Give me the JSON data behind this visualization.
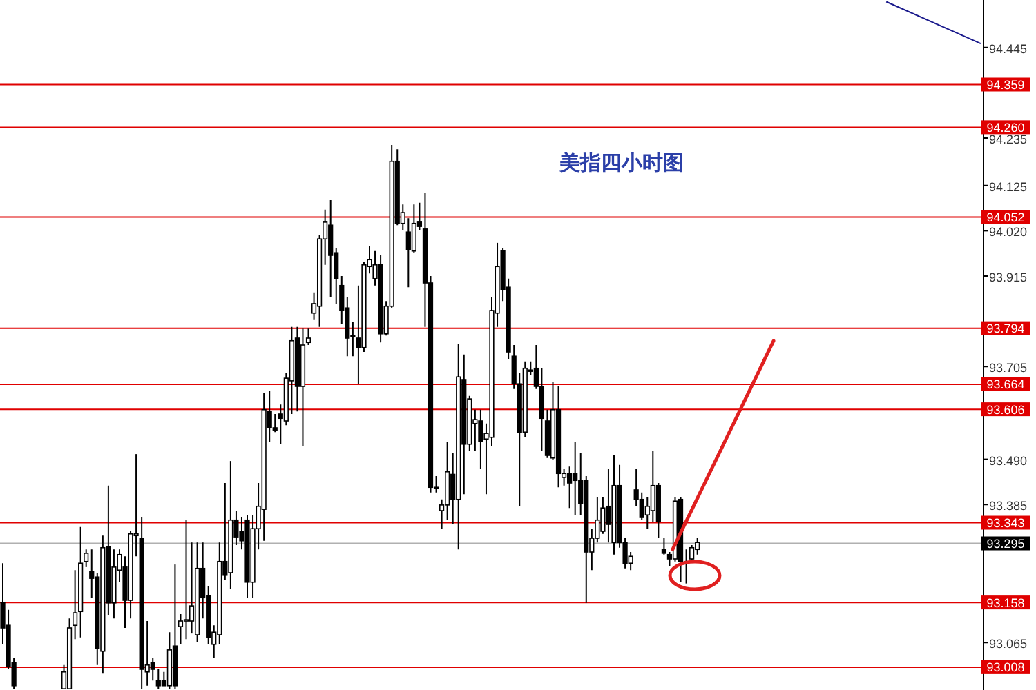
{
  "chart_data": {
    "type": "candlestick",
    "title": "美指四小时图",
    "categories": [
      null,
      null,
      null,
      null,
      null,
      null,
      null,
      null,
      null,
      null,
      null,
      null,
      null,
      null,
      null,
      null,
      null,
      null,
      null,
      null,
      null,
      null,
      null,
      null,
      null,
      null,
      null,
      null,
      null,
      null,
      null,
      null,
      null,
      null,
      null,
      null,
      null,
      null,
      null,
      null,
      null,
      null,
      null,
      null,
      null,
      null,
      null,
      null,
      null,
      null,
      null,
      null,
      null,
      null,
      null,
      null,
      null,
      null,
      null,
      null,
      null,
      null,
      null,
      null,
      null,
      null,
      null,
      null,
      null,
      null,
      null,
      null,
      null,
      null,
      null,
      null,
      null,
      null,
      null,
      null,
      null,
      null,
      null,
      null,
      null,
      null,
      null,
      null,
      null,
      null,
      null,
      null,
      null,
      null,
      null,
      null,
      null,
      null,
      null,
      null,
      null,
      null,
      null,
      null,
      null,
      null,
      null,
      null,
      null,
      null,
      null,
      null,
      null,
      null,
      null,
      null,
      null,
      null,
      null,
      null,
      null,
      null,
      null,
      null,
      null,
      null,
      null,
      null,
      null,
      null,
      null,
      null,
      null,
      null,
      null,
      null,
      null,
      null,
      null,
      null,
      null,
      null,
      null,
      null,
      null,
      null,
      null,
      null,
      null,
      null,
      null,
      null,
      null,
      null,
      null,
      null,
      null,
      null,
      null,
      null,
      null,
      null,
      null,
      null,
      null,
      null,
      null,
      null,
      null,
      null,
      null,
      null,
      null,
      null,
      null,
      null,
      null
    ],
    "ohlc": [
      [
        93.157,
        93.249,
        93.061,
        93.099
      ],
      [
        93.105,
        93.141,
        93.003,
        93.009
      ],
      [
        93.019,
        93.029,
        92.958,
        92.965
      ],
      null,
      null,
      null,
      null,
      null,
      null,
      null,
      null,
      [
        92.958,
        93.013,
        92.958,
        92.997
      ],
      [
        92.958,
        93.121,
        92.958,
        93.099
      ],
      [
        93.105,
        93.233,
        93.073,
        93.134
      ],
      [
        93.137,
        93.333,
        93.077,
        93.249
      ],
      [
        93.253,
        93.281,
        93.24,
        93.272
      ],
      [
        93.23,
        93.281,
        93.169,
        93.214
      ],
      [
        93.217,
        93.227,
        93.013,
        93.051
      ],
      [
        93.045,
        93.313,
        92.993,
        93.285
      ],
      [
        93.288,
        93.429,
        93.128,
        93.157
      ],
      [
        93.157,
        93.281,
        93.121,
        93.24
      ],
      [
        93.233,
        93.281,
        93.205,
        93.269
      ],
      [
        93.24,
        93.265,
        93.099,
        93.163
      ],
      [
        93.163,
        93.323,
        93.121,
        93.317
      ],
      [
        93.313,
        93.502,
        93.265,
        93.317
      ],
      [
        93.307,
        93.355,
        92.958,
        93.003
      ],
      [
        92.997,
        93.115,
        92.965,
        93.013
      ],
      [
        93.019,
        93.029,
        92.977,
        93.003
      ],
      [
        92.977,
        93.003,
        92.958,
        92.965
      ],
      [
        92.977,
        92.997,
        92.965,
        92.965
      ],
      [
        92.965,
        93.089,
        92.958,
        93.048
      ],
      [
        93.057,
        93.246,
        92.958,
        92.965
      ],
      [
        93.102,
        93.131,
        93.061,
        93.115
      ],
      [
        93.115,
        93.349,
        93.073,
        93.118
      ],
      [
        93.115,
        93.297,
        93.086,
        93.15
      ],
      [
        93.083,
        93.297,
        93.067,
        93.237
      ],
      [
        93.237,
        93.297,
        93.121,
        93.169
      ],
      [
        93.173,
        93.195,
        93.061,
        93.077
      ],
      [
        93.061,
        93.105,
        93.029,
        93.089
      ],
      [
        93.083,
        93.297,
        93.061,
        93.253
      ],
      [
        93.253,
        93.435,
        93.211,
        93.221
      ],
      [
        93.227,
        93.486,
        93.189,
        93.349
      ],
      [
        93.349,
        93.371,
        93.291,
        93.31
      ],
      [
        93.323,
        93.355,
        93.281,
        93.301
      ],
      [
        93.349,
        93.361,
        93.169,
        93.205
      ],
      [
        93.205,
        93.361,
        93.169,
        93.329
      ],
      [
        93.329,
        93.435,
        93.281,
        93.381
      ],
      [
        93.374,
        93.643,
        93.301,
        93.605
      ],
      [
        93.601,
        93.649,
        93.531,
        93.563
      ],
      [
        93.563,
        93.595,
        93.553,
        93.557
      ],
      [
        93.595,
        93.617,
        93.525,
        93.585
      ],
      [
        93.579,
        93.691,
        93.569,
        93.678
      ],
      [
        93.672,
        93.797,
        93.595,
        93.765
      ],
      [
        93.771,
        93.797,
        93.601,
        93.659
      ],
      [
        93.659,
        93.793,
        93.521,
        93.755
      ],
      [
        93.761,
        93.793,
        93.755,
        93.771
      ],
      [
        93.829,
        93.877,
        93.813,
        93.851
      ],
      [
        93.845,
        94.011,
        93.797,
        94.001
      ],
      [
        94.001,
        94.069,
        93.941,
        94.04
      ],
      [
        94.033,
        94.091,
        93.867,
        93.963
      ],
      [
        93.969,
        93.979,
        93.851,
        93.909
      ],
      [
        93.893,
        93.915,
        93.803,
        93.835
      ],
      [
        93.841,
        93.867,
        93.729,
        93.771
      ],
      [
        93.777,
        93.809,
        93.729,
        93.774
      ],
      [
        93.771,
        93.893,
        93.665,
        93.749
      ],
      [
        93.749,
        93.947,
        93.739,
        93.941
      ],
      [
        93.937,
        93.985,
        93.921,
        93.953
      ],
      [
        93.909,
        93.973,
        93.893,
        93.941
      ],
      [
        93.941,
        93.963,
        93.761,
        93.781
      ],
      [
        93.781,
        93.857,
        93.777,
        93.845
      ],
      [
        93.845,
        94.219,
        93.841,
        94.181
      ],
      [
        94.181,
        94.209,
        94.033,
        94.037
      ],
      [
        94.037,
        94.081,
        94.021,
        94.062
      ],
      [
        94.017,
        94.049,
        93.889,
        93.976
      ],
      [
        93.973,
        94.081,
        93.969,
        94.037
      ],
      [
        94.04,
        94.085,
        94.021,
        94.03
      ],
      [
        94.024,
        94.107,
        93.797,
        93.899
      ],
      [
        93.899,
        93.915,
        93.413,
        93.425
      ],
      [
        93.425,
        93.451,
        93.413,
        93.422
      ],
      [
        93.371,
        93.397,
        93.329,
        93.384
      ],
      [
        93.384,
        93.531,
        93.349,
        93.461
      ],
      [
        93.455,
        93.505,
        93.339,
        93.397
      ],
      [
        93.397,
        93.758,
        93.281,
        93.681
      ],
      [
        93.675,
        93.733,
        93.409,
        93.525
      ],
      [
        93.525,
        93.637,
        93.509,
        93.63
      ],
      [
        93.573,
        93.605,
        93.509,
        93.582
      ],
      [
        93.579,
        93.605,
        93.467,
        93.531
      ],
      [
        93.537,
        93.573,
        93.409,
        93.55
      ],
      [
        93.541,
        93.867,
        93.521,
        93.835
      ],
      [
        93.829,
        93.992,
        93.797,
        93.937
      ],
      [
        93.973,
        93.979,
        93.857,
        93.883
      ],
      [
        93.889,
        93.909,
        93.723,
        93.739
      ],
      [
        93.729,
        93.755,
        93.653,
        93.665
      ],
      [
        93.665,
        93.691,
        93.381,
        93.553
      ],
      [
        93.553,
        93.717,
        93.541,
        93.701
      ],
      [
        93.697,
        93.717,
        93.685,
        93.694
      ],
      [
        93.701,
        93.755,
        93.653,
        93.659
      ],
      [
        93.659,
        93.701,
        93.509,
        93.585
      ],
      [
        93.579,
        93.605,
        93.493,
        93.499
      ],
      [
        93.493,
        93.669,
        93.489,
        93.605
      ],
      [
        93.605,
        93.659,
        93.425,
        93.457
      ],
      [
        93.448,
        93.467,
        93.429,
        93.457
      ],
      [
        93.457,
        93.473,
        93.377,
        93.435
      ],
      [
        93.457,
        93.531,
        93.361,
        93.441
      ],
      [
        93.441,
        93.505,
        93.361,
        93.387
      ],
      [
        93.441,
        93.451,
        93.157,
        93.275
      ],
      [
        93.275,
        93.329,
        93.233,
        93.307
      ],
      [
        93.307,
        93.403,
        93.297,
        93.349
      ],
      [
        93.323,
        93.403,
        93.317,
        93.377
      ],
      [
        93.381,
        93.467,
        93.297,
        93.339
      ],
      [
        93.297,
        93.499,
        93.269,
        93.429
      ],
      [
        93.429,
        93.477,
        93.285,
        93.297
      ],
      [
        93.297,
        93.307,
        93.237,
        93.249
      ],
      [
        93.249,
        93.275,
        93.233,
        93.265
      ],
      [
        93.419,
        93.467,
        93.381,
        93.397
      ],
      [
        93.397,
        93.413,
        93.349,
        93.355
      ],
      [
        93.361,
        93.403,
        93.329,
        93.381
      ],
      [
        93.371,
        93.509,
        93.345,
        93.429
      ],
      [
        93.429,
        93.435,
        93.307,
        93.345
      ],
      [
        93.281,
        93.307,
        93.269,
        93.272
      ],
      [
        93.269,
        93.275,
        93.243,
        93.259
      ],
      [
        93.259,
        93.403,
        93.253,
        93.393
      ],
      [
        93.397,
        93.403,
        93.205,
        93.253
      ],
      [
        93.253,
        93.281,
        93.202,
        93.249
      ],
      [
        93.259,
        93.291,
        93.253,
        93.285
      ],
      [
        93.281,
        93.307,
        93.269,
        93.297
      ],
      null,
      null,
      null,
      null,
      null,
      null,
      null,
      null,
      null,
      null,
      null,
      null,
      null,
      null,
      null,
      null,
      null,
      null,
      null,
      null,
      null,
      null,
      null,
      null,
      null,
      null,
      null,
      null,
      null,
      null,
      null,
      null,
      null,
      null,
      null,
      null,
      null,
      null,
      null,
      null,
      null,
      null,
      null,
      null,
      null,
      null,
      null,
      null,
      null,
      null,
      null
    ],
    "series": [
      {
        "type": "line",
        "values": [
          null,
          null,
          null,
          null,
          null,
          null,
          null,
          null,
          null,
          null,
          null,
          null,
          null,
          null,
          null,
          null,
          null,
          null,
          null,
          null,
          null,
          null,
          null,
          null,
          null,
          null,
          null,
          null,
          null,
          null,
          null,
          null,
          null,
          null,
          null,
          null,
          null,
          null,
          null,
          null,
          null,
          null,
          null,
          null,
          null,
          null,
          null,
          null,
          null,
          null,
          null,
          null,
          null,
          null,
          null,
          null,
          null,
          null,
          null,
          null,
          null,
          null,
          null,
          null,
          null,
          null,
          null,
          null,
          null,
          null,
          null,
          null,
          null,
          null,
          null,
          null,
          null,
          null,
          null,
          null,
          null,
          null,
          null,
          null,
          null,
          null,
          null,
          null,
          null,
          null,
          null,
          null,
          null,
          null,
          null,
          null,
          null,
          null,
          null,
          null,
          null,
          null,
          null,
          null,
          null,
          null,
          null,
          null,
          null,
          null,
          null,
          null,
          null,
          null,
          null,
          null,
          null,
          null,
          null,
          null,
          null,
          null,
          null,
          null,
          null,
          null,
          null,
          null,
          null,
          null,
          null,
          null,
          null,
          null,
          null,
          null,
          null,
          null,
          null,
          null,
          null,
          null,
          null,
          null,
          null,
          null,
          null,
          null,
          null,
          null,
          null,
          null,
          null,
          null,
          null,
          null,
          null,
          null,
          null,
          94.551,
          null,
          null,
          null,
          null,
          null,
          null,
          null,
          null,
          null,
          null,
          null,
          null,
          null,
          null,
          null,
          null,
          94.454
        ],
        "color": "#1a1a8c"
      }
    ],
    "ylim": [
      92.955,
      94.555
    ],
    "yticks": [
      94.445,
      94.235,
      94.125,
      {
        "value": 94.02,
        "label": "94.020"
      },
      93.915,
      93.705,
      {
        "value": 93.49,
        "label": "93.490"
      },
      93.385,
      93.065
    ],
    "tick_labels": "y",
    "ref_lines": [
      {
        "axis": "y",
        "value": 94.359,
        "label": "94.359",
        "color": "#e00000"
      },
      {
        "axis": "y",
        "value": 94.26,
        "label": "94.260",
        "color": "#e00000"
      },
      {
        "axis": "y",
        "value": 94.052,
        "label": "94.052",
        "color": "#e00000"
      },
      {
        "axis": "y",
        "value": 93.794,
        "label": "93.794",
        "color": "#e00000"
      },
      {
        "axis": "y",
        "value": 93.664,
        "label": "93.664",
        "color": "#e00000"
      },
      {
        "axis": "y",
        "value": 93.606,
        "label": "93.606",
        "color": "#e00000"
      },
      {
        "axis": "y",
        "value": 93.343,
        "label": "93.343",
        "color": "#e00000"
      },
      {
        "axis": "y",
        "value": 93.295,
        "label": "93.295",
        "color": "#b0b0b0"
      },
      {
        "axis": "y",
        "value": 93.158,
        "label": "93.158",
        "color": "#e00000"
      },
      {
        "axis": "y",
        "value": 93.008,
        "label": "93.008",
        "color": "#e00000"
      }
    ]
  }
}
